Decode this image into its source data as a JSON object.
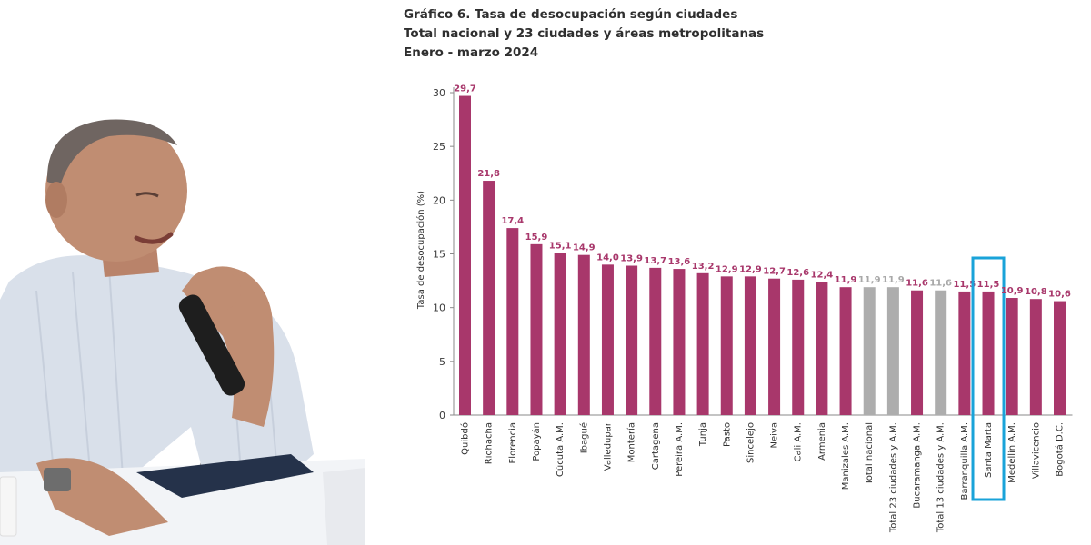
{
  "chart_data": {
    "type": "bar",
    "title": "Gráfico 6. Tasa de desocupación según ciudades",
    "subtitle": "Total nacional y 23 ciudades y áreas metropolitanas",
    "period": "Enero - marzo 2024",
    "xlabel": "",
    "ylabel": "Tasa de desocupación (%)",
    "ylim": [
      0,
      30
    ],
    "yticks": [
      "0",
      "5",
      "10",
      "15",
      "20",
      "25",
      "30"
    ],
    "grid": false,
    "legend": "none",
    "categories": [
      "Quibdó",
      "Riohacha",
      "Florencia",
      "Popayán",
      "Cúcuta A.M.",
      "Ibagué",
      "Valledupar",
      "Montería",
      "Cartagena",
      "Pereira A.M.",
      "Tunja",
      "Pasto",
      "Sincelejo",
      "Neiva",
      "Cali A.M.",
      "Armenia",
      "Manizales A.M.",
      "Total nacional",
      "Total 23 ciudades y A.M.",
      "Bucaramanga A.M.",
      "Total 13 ciudades y A.M.",
      "Barranquilla A.M.",
      "Santa Marta",
      "Medellín A.M.",
      "Villavicencio",
      "Bogotá D.C."
    ],
    "values": [
      29.7,
      21.8,
      17.4,
      15.9,
      15.1,
      14.9,
      14.0,
      13.9,
      13.7,
      13.6,
      13.2,
      12.9,
      12.9,
      12.7,
      12.6,
      12.4,
      11.9,
      11.9,
      11.9,
      11.6,
      11.6,
      11.5,
      11.5,
      10.9,
      10.8,
      10.6
    ],
    "value_labels": [
      "29,7",
      "21,8",
      "17,4",
      "15,9",
      "15,1",
      "14,9",
      "14,0",
      "13,9",
      "13,7",
      "13,6",
      "13,2",
      "12,9",
      "12,9",
      "12,7",
      "12,6",
      "12,4",
      "11,9",
      "11,9",
      "11,9",
      "11,6",
      "11,6",
      "11,5",
      "11,5",
      "10,9",
      "10,8",
      "10,6"
    ],
    "bar_kinds": [
      "city",
      "city",
      "city",
      "city",
      "city",
      "city",
      "city",
      "city",
      "city",
      "city",
      "city",
      "city",
      "city",
      "city",
      "city",
      "city",
      "city",
      "total",
      "total",
      "city",
      "total",
      "city",
      "city",
      "city",
      "city",
      "city"
    ],
    "highlighted_category": "Santa Marta",
    "colors": {
      "city": "#a8376b",
      "total": "#adadad",
      "city_label": "#a8376b",
      "total_label": "#a8a8a8",
      "highlight_box": "#1aa3d9"
    }
  }
}
